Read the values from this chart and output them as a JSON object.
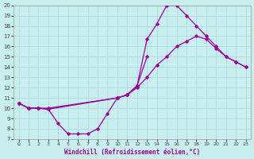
{
  "xlabel": "Windchill (Refroidissement éolien,°C)",
  "bg_color": "#c8eef0",
  "line_color": "#990099",
  "grid_color": "#b0d8dc",
  "xlim": [
    -0.5,
    23.5
  ],
  "ylim": [
    7,
    20
  ],
  "xticks": [
    0,
    1,
    2,
    3,
    4,
    5,
    6,
    7,
    8,
    9,
    10,
    11,
    12,
    13,
    14,
    15,
    16,
    17,
    18,
    19,
    20,
    21,
    22,
    23
  ],
  "yticks": [
    7,
    8,
    9,
    10,
    11,
    12,
    13,
    14,
    15,
    16,
    17,
    18,
    19,
    20
  ],
  "line1_x": [
    0,
    1,
    2,
    3,
    10,
    11,
    12,
    13,
    14,
    15,
    16,
    17,
    18,
    19,
    20,
    21,
    22,
    23
  ],
  "line1_y": [
    10.5,
    10.0,
    10.0,
    9.9,
    11.0,
    11.3,
    12.2,
    16.7,
    18.2,
    20.0,
    20.0,
    19.0,
    18.0,
    17.0,
    16.0,
    15.0,
    14.5,
    14.0
  ],
  "line2_x": [
    0,
    1,
    2,
    3,
    10,
    11,
    12,
    13,
    14,
    15,
    16,
    17,
    18,
    19,
    20,
    21,
    22,
    23
  ],
  "line2_y": [
    10.5,
    10.0,
    10.0,
    10.0,
    11.0,
    11.3,
    12.0,
    13.0,
    14.2,
    15.0,
    16.0,
    16.5,
    17.0,
    16.7,
    15.8,
    15.0,
    14.5,
    14.0
  ],
  "line3_x": [
    0,
    1,
    2,
    3,
    4,
    5,
    6,
    7,
    8,
    9,
    10,
    11,
    12,
    13
  ],
  "line3_y": [
    10.5,
    10.0,
    10.0,
    9.9,
    8.5,
    7.5,
    7.5,
    7.5,
    8.0,
    9.5,
    11.0,
    11.3,
    12.2,
    15.0
  ]
}
